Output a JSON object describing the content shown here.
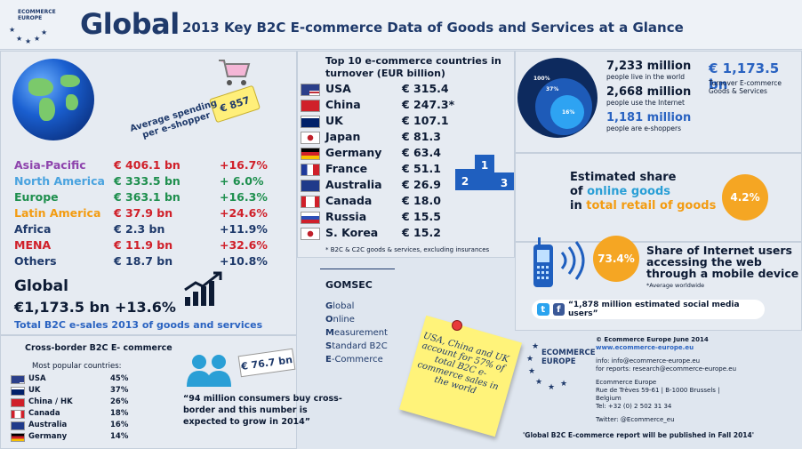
{
  "header": {
    "logo_text_line1": "ECOMMERCE",
    "logo_text_line2": "EUROPE",
    "title": "Global",
    "subtitle": "2013 Key B2C E-commerce Data of Goods and Services at a Glance"
  },
  "spending": {
    "tag": "€ 857",
    "label_line1": "Average spending",
    "label_line2": "per e-shopper"
  },
  "regions": [
    {
      "name": "Asia-Pacific",
      "value": "€ 406.1 bn",
      "growth": "+16.7%",
      "color": "#8e44ad"
    },
    {
      "name": "North America",
      "value": "€ 333.5 bn",
      "growth": "+ 6.0%",
      "color": "#4aa3df"
    },
    {
      "name": "Europe",
      "value": "€ 363.1 bn",
      "growth": "+16.3%",
      "color": "#1e8f4e"
    },
    {
      "name": "Latin America",
      "value": "€  37.9 bn",
      "growth": "+24.6%",
      "color": "#f39c12"
    },
    {
      "name": "Africa",
      "value": "€   2.3 bn",
      "growth": "+11.9%",
      "color": "#1f3a6b"
    },
    {
      "name": "MENA",
      "value": "€  11.9 bn",
      "growth": "+32.6%",
      "color": "#d0202a"
    },
    {
      "name": "Others",
      "value": "€  18.7 bn",
      "growth": "+10.8%",
      "color": "#1f3a6b"
    }
  ],
  "global_summary": {
    "label": "Global",
    "value": "€1,173.5 bn +13.6%",
    "total_text": "Total B2C e-sales 2013 of goods and services"
  },
  "top10": {
    "title": "Top 10 e-commerce countries in turnover (EUR billion)",
    "rows": [
      {
        "country": "USA",
        "value": "€  315.4"
      },
      {
        "country": "China",
        "value": "€  247.3*"
      },
      {
        "country": "UK",
        "value": "€  107.1"
      },
      {
        "country": "Japan",
        "value": "€   81.3"
      },
      {
        "country": "Germany",
        "value": "€   63.4"
      },
      {
        "country": "France",
        "value": "€   51.1"
      },
      {
        "country": "Australia",
        "value": "€   26.9"
      },
      {
        "country": "Canada",
        "value": "€   18.0"
      },
      {
        "country": "Russia",
        "value": "€   15.5"
      },
      {
        "country": "S. Korea",
        "value": "€   15.2"
      }
    ],
    "note": "* B2C & C2C goods & services, excluding insurances"
  },
  "podium": {
    "first": "1",
    "second": "2",
    "third": "3"
  },
  "population": {
    "circle_outer": "100%",
    "circle_mid": "37%",
    "circle_inner": "16%",
    "stat1_num": "7,233 million",
    "stat1_cap": "people live in the world",
    "stat2_num": "2,668 million",
    "stat2_cap": "people use the Internet",
    "stat3_num": "1,181 million",
    "stat3_cap": "people are e-shoppers",
    "turnover_value": "€ 1,173.5 bn",
    "turnover_cap_line1": "Turnover E-commerce",
    "turnover_cap_line2": "Goods & Services"
  },
  "share_online": {
    "line1": "Estimated share",
    "line2_prefix": "of ",
    "line2_highlight": "online goods",
    "line3_prefix": "in ",
    "line3_highlight": "total retail of goods",
    "value": "4.2%"
  },
  "mobile": {
    "value": "73.4%",
    "line1": "Share of Internet users",
    "line2": "accessing the web",
    "line3": "through a mobile device",
    "note": "*Average worldwide"
  },
  "social": {
    "text": "“1,878 million estimated social media users”"
  },
  "gomsec": {
    "title": "GOMSEC",
    "items": [
      {
        "first": "G",
        "rest": "lobal"
      },
      {
        "first": "O",
        "rest": "nline"
      },
      {
        "first": "M",
        "rest": "easurement"
      },
      {
        "first": "S",
        "rest": "tandard B2C"
      },
      {
        "first": "E",
        "rest": "-Commerce"
      }
    ]
  },
  "sticky": {
    "text": "USA, China and UK account for 57% of total B2C e-commerce sales in the world"
  },
  "cross_border": {
    "title": "Cross-border B2C E- commerce",
    "subtitle": "Most popular countries:",
    "rows": [
      {
        "country": "USA",
        "value": "45%"
      },
      {
        "country": "UK",
        "value": "37%"
      },
      {
        "country": "China / HK",
        "value": "26%"
      },
      {
        "country": "Canada",
        "value": "18%"
      },
      {
        "country": "Australia",
        "value": "16%"
      },
      {
        "country": "Germany",
        "value": "14%"
      }
    ],
    "tag": "€ 76.7 bn",
    "quote": "“94 million consumers buy cross-border and this number is expected to grow in 2014”"
  },
  "contact": {
    "logo_line1": "ECOMMERCE",
    "logo_line2": "EUROPE",
    "copyright": "© Ecommerce Europe June 2014",
    "website": "www.ecommerce-europe.eu",
    "info": "info: info@ecommerce-europe.eu",
    "reports": "for reports: research@ecommerce-europe.eu",
    "org": "Ecommerce Europe",
    "address": "Rue de Trèves 59-61 | B-1000 Brussels |",
    "country": "Belgium",
    "tel": "Tel: +32 (0) 2 502 31 34",
    "twitter": "Twitter: @Ecommerce_eu",
    "report_note": "'Global B2C E-commerce report will be published in Fall 2014'"
  }
}
